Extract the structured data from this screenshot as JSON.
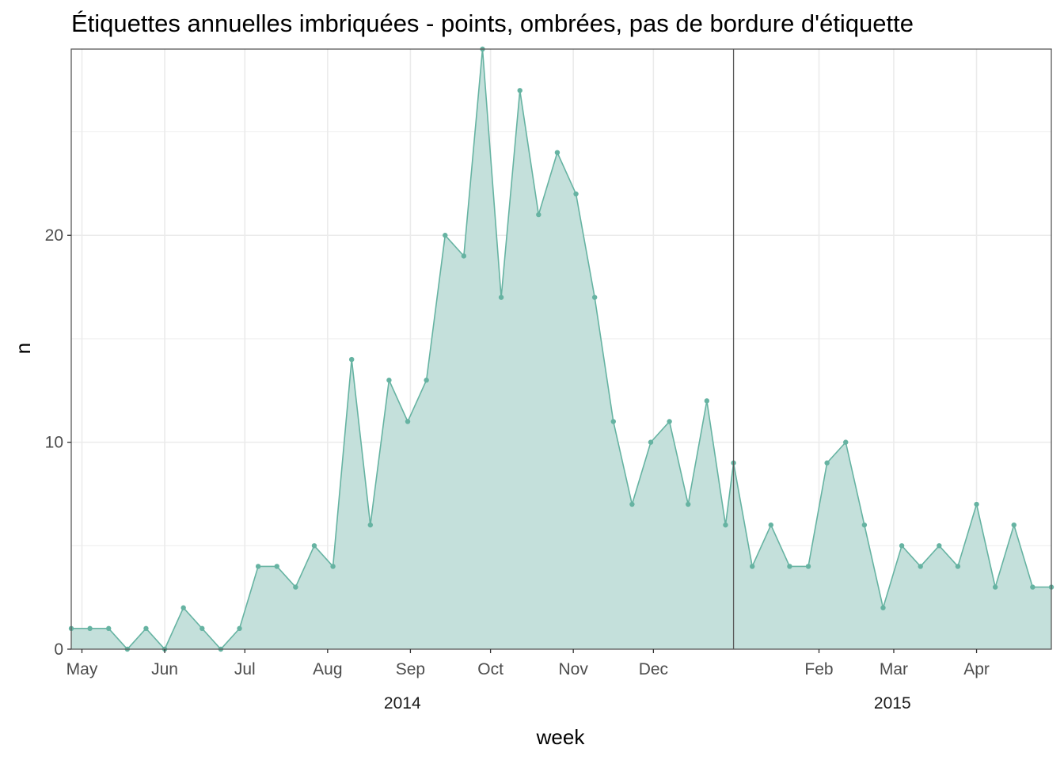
{
  "chart_data": {
    "type": "area",
    "title": "Étiquettes annuelles imbriquées - points, ombrées, pas de bordure d'étiquette",
    "xlabel": "week",
    "ylabel": "n",
    "ylim": [
      0,
      29
    ],
    "yticks": [
      0,
      10,
      20
    ],
    "grid": true,
    "legend": "none",
    "month_ticks": [
      {
        "label": "May",
        "date": "2014-05-01"
      },
      {
        "label": "Jun",
        "date": "2014-06-01"
      },
      {
        "label": "Jul",
        "date": "2014-07-01"
      },
      {
        "label": "Aug",
        "date": "2014-08-01"
      },
      {
        "label": "Sep",
        "date": "2014-09-01"
      },
      {
        "label": "Oct",
        "date": "2014-10-01"
      },
      {
        "label": "Nov",
        "date": "2014-11-01"
      },
      {
        "label": "Dec",
        "date": "2014-12-01"
      },
      {
        "label": "Feb",
        "date": "2015-02-01"
      },
      {
        "label": "Mar",
        "date": "2015-03-01"
      },
      {
        "label": "Apr",
        "date": "2015-04-01"
      }
    ],
    "year_labels": [
      {
        "label": "2014",
        "from": "2014-04-27",
        "to": "2014-12-31"
      },
      {
        "label": "2015",
        "from": "2014-12-31",
        "to": "2015-04-29"
      }
    ],
    "year_separator": "2014-12-31",
    "x": [
      "2014-04-27",
      "2014-05-04",
      "2014-05-11",
      "2014-05-18",
      "2014-05-25",
      "2014-06-01",
      "2014-06-08",
      "2014-06-15",
      "2014-06-22",
      "2014-06-29",
      "2014-07-06",
      "2014-07-13",
      "2014-07-20",
      "2014-07-27",
      "2014-08-03",
      "2014-08-10",
      "2014-08-17",
      "2014-08-24",
      "2014-08-31",
      "2014-09-07",
      "2014-09-14",
      "2014-09-21",
      "2014-09-28",
      "2014-10-05",
      "2014-10-12",
      "2014-10-19",
      "2014-10-26",
      "2014-11-02",
      "2014-11-09",
      "2014-11-16",
      "2014-11-23",
      "2014-11-30",
      "2014-12-07",
      "2014-12-14",
      "2014-12-21",
      "2014-12-28",
      "2014-12-31",
      "2015-01-07",
      "2015-01-14",
      "2015-01-21",
      "2015-01-28",
      "2015-02-04",
      "2015-02-11",
      "2015-02-18",
      "2015-02-25",
      "2015-03-04",
      "2015-03-11",
      "2015-03-18",
      "2015-03-25",
      "2015-04-01",
      "2015-04-08",
      "2015-04-15",
      "2015-04-22",
      "2015-04-29"
    ],
    "series": [
      {
        "values": [
          1,
          1,
          1,
          0,
          1,
          0,
          2,
          1,
          0,
          1,
          4,
          4,
          3,
          5,
          4,
          14,
          6,
          13,
          11,
          13,
          20,
          19,
          29,
          17,
          27,
          21,
          24,
          22,
          17,
          11,
          7,
          10,
          11,
          7,
          12,
          6,
          9,
          4,
          6,
          4,
          4,
          9,
          10,
          6,
          2,
          5,
          4,
          5,
          4,
          7,
          3,
          6,
          3,
          3
        ]
      }
    ],
    "colors": {
      "line": "#66b3a2",
      "fill": "#c4e0db",
      "grid": "#ebebeb",
      "border": "#595959",
      "separator": "#595959"
    }
  }
}
